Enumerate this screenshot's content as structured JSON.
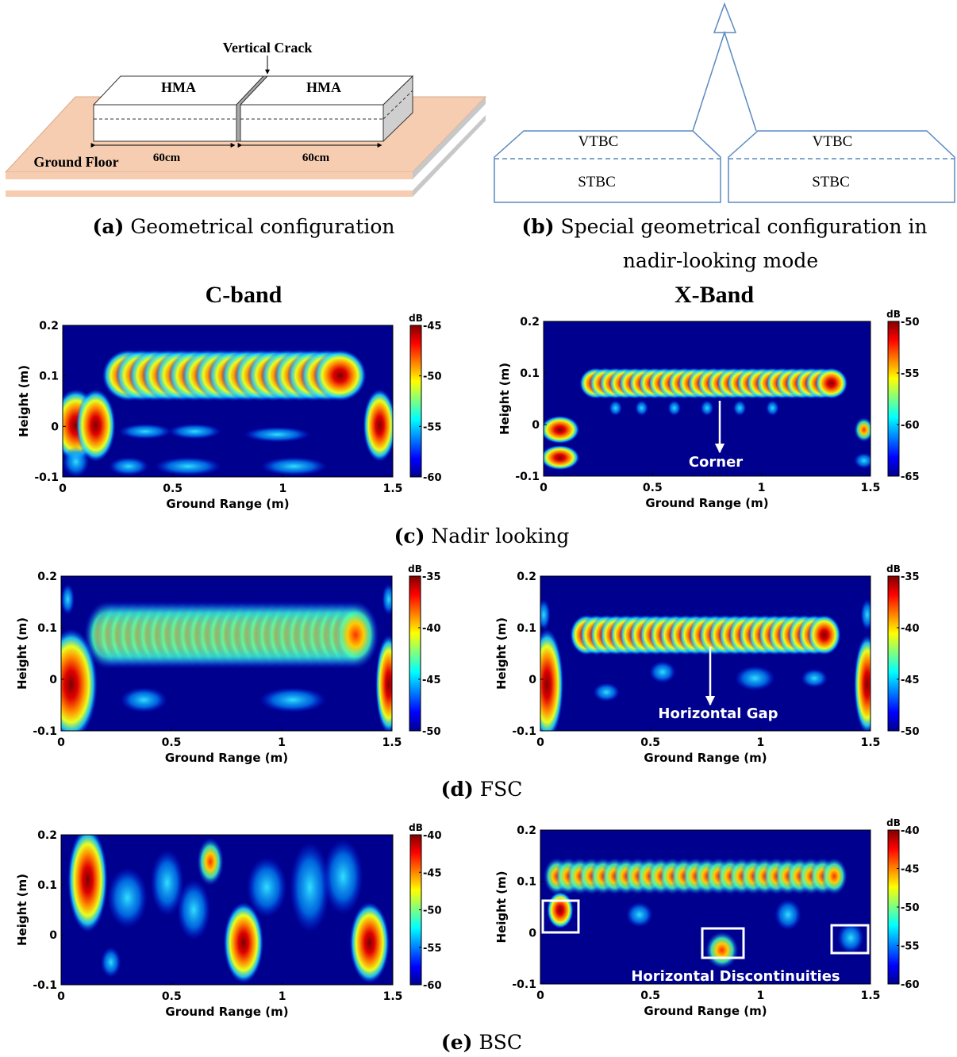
{
  "figure_a": {
    "label": "(a)",
    "caption": "Geometrical configuration",
    "crack": "Vertical Crack",
    "blocks": [
      "HMA",
      "HMA"
    ],
    "ground": "Ground Floor",
    "lengths": [
      "60cm",
      "60cm"
    ]
  },
  "figure_b": {
    "label": "(b)",
    "caption_lines": [
      "Special geometrical configuration in",
      "nadir-looking mode"
    ],
    "top_layers": [
      "VTBC",
      "VTBC"
    ],
    "bottom_layers": [
      "STBC",
      "STBC"
    ]
  },
  "columns": [
    "C-band",
    "X-Band"
  ],
  "rows": [
    {
      "label": "(c)",
      "caption": "Nadir looking",
      "panels": [
        {
          "xlabel": "Ground Range (m)",
          "ylabel": "Height (m)",
          "xlim": [
            0,
            1.5
          ],
          "ylim": [
            -0.1,
            0.2
          ],
          "xticks": [
            0,
            0.5,
            1,
            1.5
          ],
          "yticks": [
            -0.1,
            0,
            0.1,
            0.2
          ],
          "colorbar": {
            "label": "dB",
            "lim": [
              -60,
              -45
            ],
            "ticks": [
              -60,
              -55,
              -50,
              -45
            ]
          },
          "annotations": []
        },
        {
          "xlabel": "Ground Range (m)",
          "ylabel": "Height (m)",
          "xlim": [
            0,
            1.5
          ],
          "ylim": [
            -0.1,
            0.2
          ],
          "xticks": [
            0,
            0.5,
            1,
            1.5
          ],
          "yticks": [
            -0.1,
            0,
            0.1,
            0.2
          ],
          "colorbar": {
            "label": "dB",
            "lim": [
              -65,
              -50
            ],
            "ticks": [
              -65,
              -60,
              -55,
              -50
            ]
          },
          "annotations": [
            "Corner"
          ]
        }
      ]
    },
    {
      "label": "(d)",
      "caption": "FSC",
      "panels": [
        {
          "xlabel": "Ground Range (m)",
          "ylabel": "Height (m)",
          "xlim": [
            0,
            1.5
          ],
          "ylim": [
            -0.1,
            0.2
          ],
          "xticks": [
            0,
            0.5,
            1,
            1.5
          ],
          "yticks": [
            -0.1,
            0,
            0.1,
            0.2
          ],
          "colorbar": {
            "label": "dB",
            "lim": [
              -50,
              -35
            ],
            "ticks": [
              -50,
              -45,
              -40,
              -35
            ]
          },
          "annotations": []
        },
        {
          "xlabel": "Ground Range (m)",
          "ylabel": "Height (m)",
          "xlim": [
            0,
            1.5
          ],
          "ylim": [
            -0.1,
            0.2
          ],
          "xticks": [
            0,
            0.5,
            1,
            1.5
          ],
          "yticks": [
            -0.1,
            0,
            0.1,
            0.2
          ],
          "colorbar": {
            "label": "dB",
            "lim": [
              -50,
              -35
            ],
            "ticks": [
              -50,
              -45,
              -40,
              -35
            ]
          },
          "annotations": [
            "Horizontal Gap"
          ]
        }
      ]
    },
    {
      "label": "(e)",
      "caption": "BSC",
      "panels": [
        {
          "xlabel": "Ground Range (m)",
          "ylabel": "Height (m)",
          "xlim": [
            0,
            1.5
          ],
          "ylim": [
            -0.1,
            0.2
          ],
          "xticks": [
            0,
            0.5,
            1,
            1.5
          ],
          "yticks": [
            -0.1,
            0,
            0.1,
            0.2
          ],
          "colorbar": {
            "label": "dB",
            "lim": [
              -60,
              -40
            ],
            "ticks": [
              -60,
              -55,
              -50,
              -45,
              -40
            ]
          },
          "annotations": []
        },
        {
          "xlabel": "Ground Range (m)",
          "ylabel": "Height (m)",
          "xlim": [
            0,
            1.5
          ],
          "ylim": [
            -0.1,
            0.2
          ],
          "xticks": [
            0,
            0.5,
            1,
            1.5
          ],
          "yticks": [
            -0.1,
            0,
            0.1,
            0.2
          ],
          "colorbar": {
            "label": "dB",
            "lim": [
              -60,
              -40
            ],
            "ticks": [
              -60,
              -55,
              -50,
              -45,
              -40
            ]
          },
          "annotations": [
            "Horizontal Discontinuities"
          ]
        }
      ]
    }
  ]
}
